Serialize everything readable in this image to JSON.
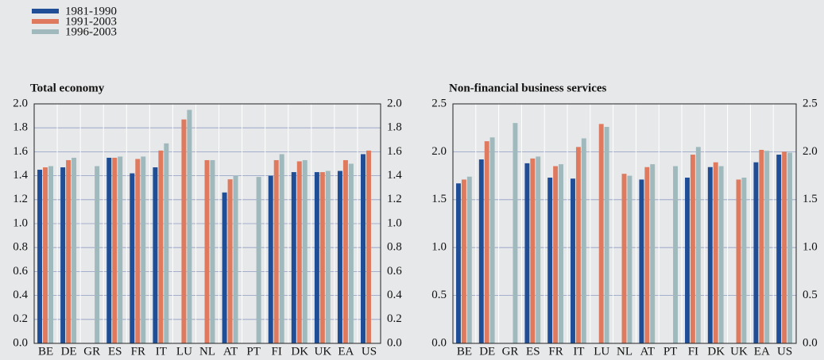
{
  "chart_data": [
    {
      "type": "bar",
      "title": "Total economy",
      "categories": [
        "BE",
        "DE",
        "GR",
        "ES",
        "FR",
        "IT",
        "LU",
        "NL",
        "AT",
        "PT",
        "FI",
        "DK",
        "UK",
        "EA",
        "US"
      ],
      "series": [
        {
          "name": "1981-1990",
          "color": "#1f4e96",
          "values": [
            1.45,
            1.47,
            null,
            1.55,
            1.42,
            1.47,
            null,
            null,
            1.26,
            null,
            1.4,
            1.43,
            1.43,
            1.44,
            1.58
          ]
        },
        {
          "name": "1991-2003",
          "color": "#e07a5f",
          "values": [
            1.47,
            1.53,
            null,
            1.55,
            1.54,
            1.61,
            1.87,
            1.53,
            1.37,
            null,
            1.53,
            1.52,
            1.43,
            1.53,
            1.61
          ]
        },
        {
          "name": "1996-2003",
          "color": "#9fb9bc",
          "values": [
            1.48,
            1.55,
            1.48,
            1.56,
            1.56,
            1.67,
            1.95,
            1.53,
            1.4,
            1.39,
            1.58,
            1.53,
            1.44,
            1.5,
            null
          ]
        }
      ],
      "ylim": [
        0,
        2
      ],
      "yticks": [
        {
          "value": 0,
          "label": "0.0"
        },
        0.2,
        0.4,
        0.6,
        0.8,
        {
          "value": 1,
          "label": "1.0"
        },
        1.2,
        1.4,
        1.6,
        1.8,
        {
          "value": 2,
          "label": "2.0"
        }
      ],
      "grid": true
    },
    {
      "type": "bar",
      "title": "Non-financial business services",
      "categories": [
        "BE",
        "DE",
        "GR",
        "ES",
        "FR",
        "IT",
        "LU",
        "NL",
        "AT",
        "PT",
        "FI",
        "DK",
        "UK",
        "EA",
        "US"
      ],
      "series": [
        {
          "color": "#1f4e96",
          "values": [
            1.67,
            1.92,
            null,
            1.88,
            1.73,
            1.72,
            null,
            null,
            1.71,
            null,
            1.73,
            1.84,
            null,
            1.89,
            1.97
          ]
        },
        {
          "color": "#e07a5f",
          "values": [
            1.71,
            2.11,
            null,
            1.93,
            1.85,
            2.05,
            2.29,
            1.77,
            1.84,
            null,
            1.97,
            1.89,
            1.71,
            2.02,
            2.0
          ]
        },
        {
          "color": "#9fb9bc",
          "values": [
            1.74,
            2.15,
            2.3,
            1.95,
            1.87,
            2.14,
            2.26,
            1.75,
            1.87,
            1.85,
            2.05,
            1.85,
            1.73,
            2.01,
            1.99
          ]
        }
      ],
      "ylim": [
        0,
        2.5
      ],
      "yticks": [
        {
          "value": 0,
          "label": "0.0"
        },
        0.5,
        {
          "value": 1,
          "label": "1.0"
        },
        1.5,
        {
          "value": 2,
          "label": "2.0"
        },
        2.5
      ],
      "grid": true
    }
  ]
}
